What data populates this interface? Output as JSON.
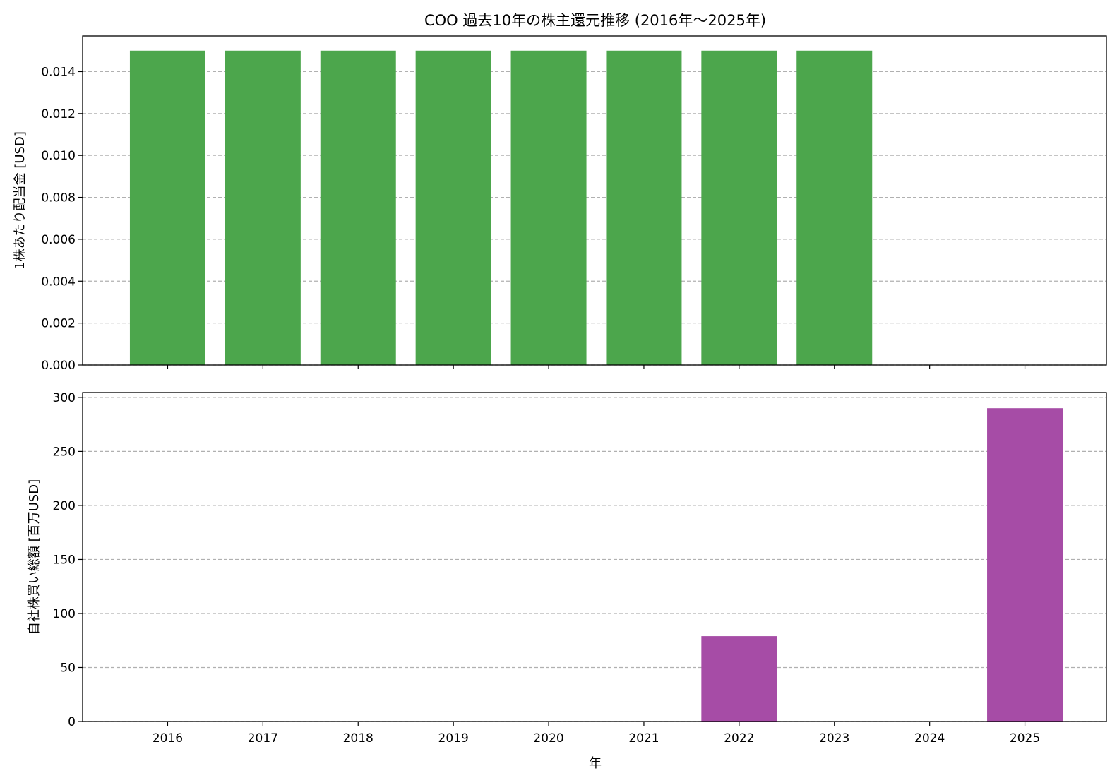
{
  "chart_data": {
    "title": "COO 過去10年の株主還元推移 (2016年〜2025年)",
    "xlabel": "年",
    "categories": [
      "2016",
      "2017",
      "2018",
      "2019",
      "2020",
      "2021",
      "2022",
      "2023",
      "2024",
      "2025"
    ],
    "subplots": [
      {
        "type": "bar",
        "ylabel": "1株あたり配当金 [USD]",
        "color": "#4ca64c",
        "values": [
          0.015,
          0.015,
          0.015,
          0.015,
          0.015,
          0.015,
          0.015,
          0.015,
          0,
          0
        ],
        "ylim": [
          0,
          0.0157
        ],
        "yticks": [
          0.0,
          0.002,
          0.004,
          0.006,
          0.008,
          0.01,
          0.012,
          0.014
        ],
        "ytick_labels": [
          "0.000",
          "0.002",
          "0.004",
          "0.006",
          "0.008",
          "0.010",
          "0.012",
          "0.014"
        ],
        "grid": "horizontal dashed"
      },
      {
        "type": "bar",
        "ylabel": "自社株買い総額 [百万USD]",
        "color": "#a64ca6",
        "values": [
          0,
          0,
          0,
          0,
          0,
          0,
          79,
          0,
          0,
          290
        ],
        "ylim": [
          0,
          304.5
        ],
        "yticks": [
          0,
          50,
          100,
          150,
          200,
          250,
          300
        ],
        "ytick_labels": [
          "0",
          "50",
          "100",
          "150",
          "200",
          "250",
          "300"
        ],
        "grid": "horizontal dashed"
      }
    ]
  }
}
